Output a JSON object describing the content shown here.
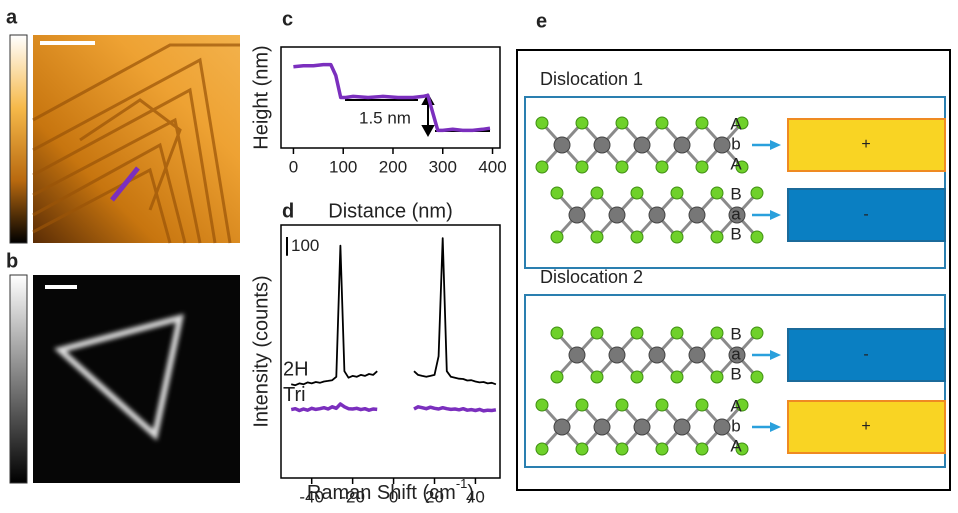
{
  "panel_labels": [
    "a",
    "b",
    "c",
    "d",
    "e"
  ],
  "chart_data": [
    {
      "type": "line",
      "x_label": "Distance (nm)",
      "y_label": "Height (nm)",
      "annotation": "1.5 nm",
      "xlim": [
        -25,
        415
      ],
      "xticks": [
        0,
        100,
        200,
        300,
        400
      ],
      "ylim": [
        -0.8,
        3.8
      ],
      "x": [
        0,
        20,
        40,
        60,
        75,
        85,
        95,
        105,
        120,
        150,
        180,
        210,
        240,
        260,
        270,
        280,
        290,
        300,
        320,
        340,
        360,
        380,
        395
      ],
      "series": [
        {
          "color": "#7b2fbe",
          "values": [
            2.9,
            2.95,
            2.95,
            3.0,
            3.0,
            2.5,
            1.5,
            1.5,
            1.55,
            1.5,
            1.55,
            1.5,
            1.5,
            1.55,
            1.6,
            0.8,
            0,
            0,
            0.05,
            0,
            0,
            0.05,
            0.1
          ]
        }
      ]
    },
    {
      "type": "line",
      "x_label": [
        "Raman Shift (cm",
        "-1",
        ")"
      ],
      "y_label": "Intensity (counts)",
      "xlim": [
        -55,
        52
      ],
      "xticks": [
        -40,
        -20,
        0,
        20,
        40
      ],
      "ylim": [
        -50,
        1300
      ],
      "scale_bar": 100,
      "x": [
        -50,
        -48,
        -46,
        -44,
        -42,
        -40,
        -38,
        -36,
        -34,
        -32,
        -30,
        -28,
        -26,
        -24,
        -22,
        -20,
        -18,
        -16,
        -14,
        -12,
        -10,
        -8,
        0,
        10,
        12,
        14,
        16,
        18,
        20,
        22,
        24,
        26,
        28,
        30,
        32,
        34,
        36,
        38,
        40,
        42,
        44,
        46,
        48,
        50
      ],
      "series": [
        {
          "name": "2H",
          "color": "#000000",
          "values": [
            450,
            445,
            455,
            450,
            460,
            455,
            462,
            458,
            465,
            468,
            472,
            490,
            1190,
            520,
            485,
            495,
            490,
            500,
            495,
            505,
            500,
            520,
            null,
            520,
            500,
            495,
            490,
            495,
            500,
            600,
            1230,
            520,
            490,
            485,
            480,
            478,
            470,
            472,
            465,
            460,
            462,
            455,
            458,
            450
          ]
        },
        {
          "name": "Tri",
          "color": "#7b2fbe",
          "values": [
            315,
            320,
            310,
            318,
            312,
            322,
            316,
            320,
            325,
            318,
            330,
            322,
            345,
            330,
            320,
            318,
            322,
            315,
            320,
            312,
            318,
            316,
            null,
            318,
            330,
            325,
            320,
            328,
            322,
            318,
            325,
            320,
            316,
            318,
            314,
            320,
            312,
            315,
            310,
            316,
            308,
            312,
            310,
            314
          ]
        }
      ]
    }
  ],
  "diagram": {
    "panels": [
      {
        "title": "Dislocation 1",
        "rows": [
          {
            "stacking": [
              "A",
              "b",
              "A"
            ],
            "sign": "+",
            "color": "#f9d423"
          },
          {
            "stacking": [
              "B",
              "a",
              "B"
            ],
            "sign": "-",
            "color": "#0a7fc2"
          }
        ]
      },
      {
        "title": "Dislocation 2",
        "rows": [
          {
            "stacking": [
              "B",
              "a",
              "B"
            ],
            "sign": "-",
            "color": "#0a7fc2"
          },
          {
            "stacking": [
              "A",
              "b",
              "A"
            ],
            "sign": "+",
            "color": "#f9d423"
          }
        ]
      }
    ]
  }
}
